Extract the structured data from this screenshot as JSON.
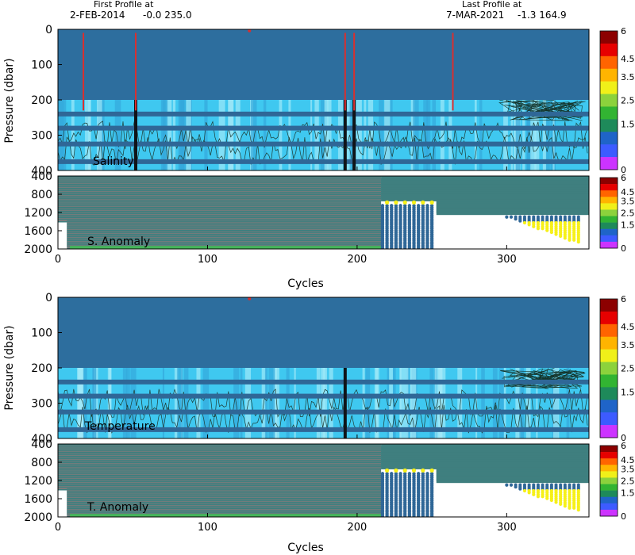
{
  "header": {
    "first_label": "First Profile at",
    "first_date": "2-FEB-2014",
    "first_coords": "-0.0 235.0",
    "last_label": "Last Profile at",
    "last_date": "7-MAR-2021",
    "last_coords": "-1.3 164.9"
  },
  "chart_data": [
    {
      "type": "heatmap",
      "panel": "upper",
      "annotation": "Salinity",
      "ylabel": "Pressure (dbar)",
      "xlim": [
        0,
        355
      ],
      "ylim": [
        400,
        0
      ],
      "x_ticks": [
        0,
        100,
        200,
        300
      ],
      "y_ticks": [
        0,
        100,
        200,
        300,
        400
      ],
      "thick_profile_cycles": [
        52,
        192,
        198
      ],
      "flagged_profile_cycles": [
        17,
        52,
        192,
        198,
        264
      ],
      "bright_band_depths": [
        200,
        400
      ],
      "dark_line_depths": [
        240,
        280,
        325,
        375
      ],
      "colorbar": {
        "ticks": [
          "6",
          "4.5",
          "3.5",
          "2.5",
          "1.5",
          "0"
        ]
      }
    },
    {
      "type": "scatter",
      "panel": "lower",
      "annotation": "S. Anomaly",
      "xlabel": "Cycles",
      "xlim": [
        0,
        355
      ],
      "ylim": [
        2000,
        400
      ],
      "x_ticks": [
        0,
        100,
        200,
        300
      ],
      "y_ticks": [
        400,
        800,
        1200,
        1600,
        2000
      ],
      "deep_profiles_end_cycle": 216,
      "shallow_profiles_from_cycle": 253,
      "colorbar": {
        "ticks": [
          "6",
          "4.5",
          "3.5",
          "2.5",
          "1.5",
          "0"
        ]
      }
    },
    {
      "type": "heatmap",
      "panel": "upper",
      "annotation": "Temperature",
      "ylabel": "Pressure (dbar)",
      "xlim": [
        0,
        355
      ],
      "ylim": [
        400,
        0
      ],
      "x_ticks": [
        0,
        100,
        200,
        300
      ],
      "y_ticks": [
        0,
        100,
        200,
        300,
        400
      ],
      "thick_profile_cycles": [
        192
      ],
      "flagged_profile_cycles": [],
      "bright_band_depths": [
        200,
        400
      ],
      "dark_line_depths": [
        240,
        280,
        325,
        375
      ],
      "colorbar": {
        "ticks": [
          "6",
          "4.5",
          "3.5",
          "2.5",
          "1.5",
          "0"
        ]
      }
    },
    {
      "type": "scatter",
      "panel": "lower",
      "annotation": "T. Anomaly",
      "xlabel": "Cycles",
      "xlim": [
        0,
        355
      ],
      "ylim": [
        2000,
        400
      ],
      "x_ticks": [
        0,
        100,
        200,
        300
      ],
      "y_ticks": [
        400,
        800,
        1200,
        1600,
        2000
      ],
      "deep_profiles_end_cycle": 216,
      "shallow_profiles_from_cycle": 253,
      "colorbar": {
        "ticks": [
          "6",
          "4.5",
          "3.5",
          "2.5",
          "1.5",
          "0"
        ]
      }
    }
  ],
  "colors": {
    "background": "#2d6e9e",
    "bright_band": "#3fc8f0",
    "dark_line": "#2f6797",
    "flag": "#d83030",
    "contour": "#1e3c34",
    "dot_row": "#3f7f7f",
    "dot_pink": "#c87878",
    "dot_yellow": "#f6f018",
    "bottom_row": "#46b45a",
    "scale": [
      "#cc33ff",
      "#3d5bff",
      "#1f64c8",
      "#1e8a5a",
      "#32b432",
      "#8cd23c",
      "#f0f019",
      "#ffb400",
      "#ff6400",
      "#e60000",
      "#8c0000"
    ]
  }
}
